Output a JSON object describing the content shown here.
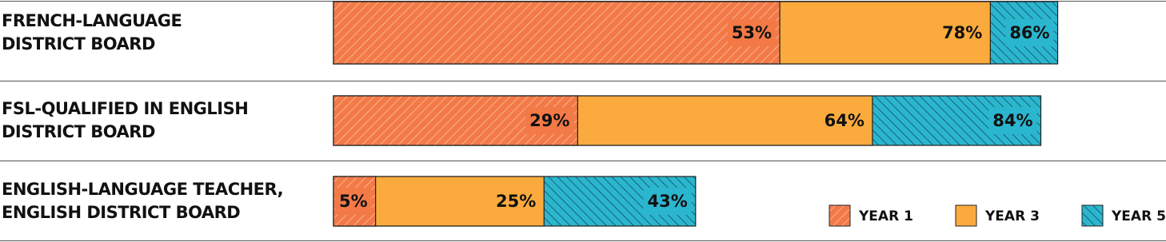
{
  "chart_data": {
    "type": "cumulative-bar",
    "categories": [
      "FRENCH-LANGUAGE\nDISTRICT BOARD",
      "FSL-QUALIFIED IN ENGLISH\nDISTRICT BOARD",
      "ENGLISH-LANGUAGE TEACHER,\nENGLISH DISTRICT BOARD"
    ],
    "series": [
      {
        "name": "YEAR 1",
        "color": "#f37a47",
        "hatch": "/",
        "values": [
          53,
          29,
          5
        ],
        "value_labels": [
          "53%",
          "29%",
          "5%"
        ]
      },
      {
        "name": "YEAR 3",
        "color": "#fbab3d",
        "hatch": "none",
        "values": [
          78,
          64,
          25
        ],
        "value_labels": [
          "78%",
          "64%",
          "25%"
        ]
      },
      {
        "name": "YEAR 5",
        "color": "#2bb6cf",
        "hatch": "\\",
        "values": [
          86,
          84,
          43
        ],
        "value_labels": [
          "86%",
          "84%",
          "43%"
        ]
      }
    ],
    "legend": "bottom-right"
  }
}
